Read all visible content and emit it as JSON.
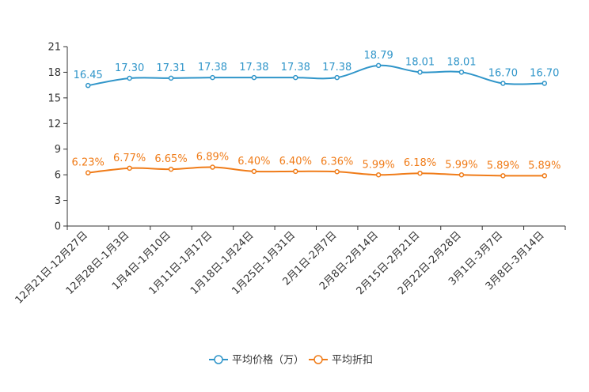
{
  "chart_data": {
    "type": "line",
    "title": "",
    "xlabel": "",
    "ylabel": "",
    "ylim": [
      0,
      21
    ],
    "yticks": [
      0,
      3,
      6,
      9,
      12,
      15,
      18,
      21
    ],
    "grid": false,
    "legend_position": "bottom",
    "categories": [
      "12月21日-12月27日",
      "12月28日-1月3日",
      "1月4日-1月10日",
      "1月11日-1月17日",
      "1月18日-1月24日",
      "1月25日-1月31日",
      "2月1日-2月7日",
      "2月8日-2月14日",
      "2月15日-2月21日",
      "2月22日-2月28日",
      "3月1日-3月7日",
      "3月8日-3月14日"
    ],
    "series": [
      {
        "name": "平均价格（万）",
        "color": "#2f95c9",
        "values": [
          16.45,
          17.3,
          17.31,
          17.38,
          17.38,
          17.38,
          17.38,
          18.79,
          18.01,
          18.01,
          16.7,
          16.7
        ],
        "labels": [
          "16.45",
          "17.30",
          "17.31",
          "17.38",
          "17.38",
          "17.38",
          "17.38",
          "18.79",
          "18.01",
          "18.01",
          "16.70",
          "16.70"
        ]
      },
      {
        "name": "平均折扣",
        "color": "#f07c19",
        "values": [
          6.23,
          6.77,
          6.65,
          6.89,
          6.4,
          6.4,
          6.36,
          5.99,
          6.18,
          5.99,
          5.89,
          5.89
        ],
        "labels": [
          "6.23%",
          "6.77%",
          "6.65%",
          "6.89%",
          "6.40%",
          "6.40%",
          "6.36%",
          "5.99%",
          "6.18%",
          "5.99%",
          "5.89%",
          "5.89%"
        ]
      }
    ]
  }
}
